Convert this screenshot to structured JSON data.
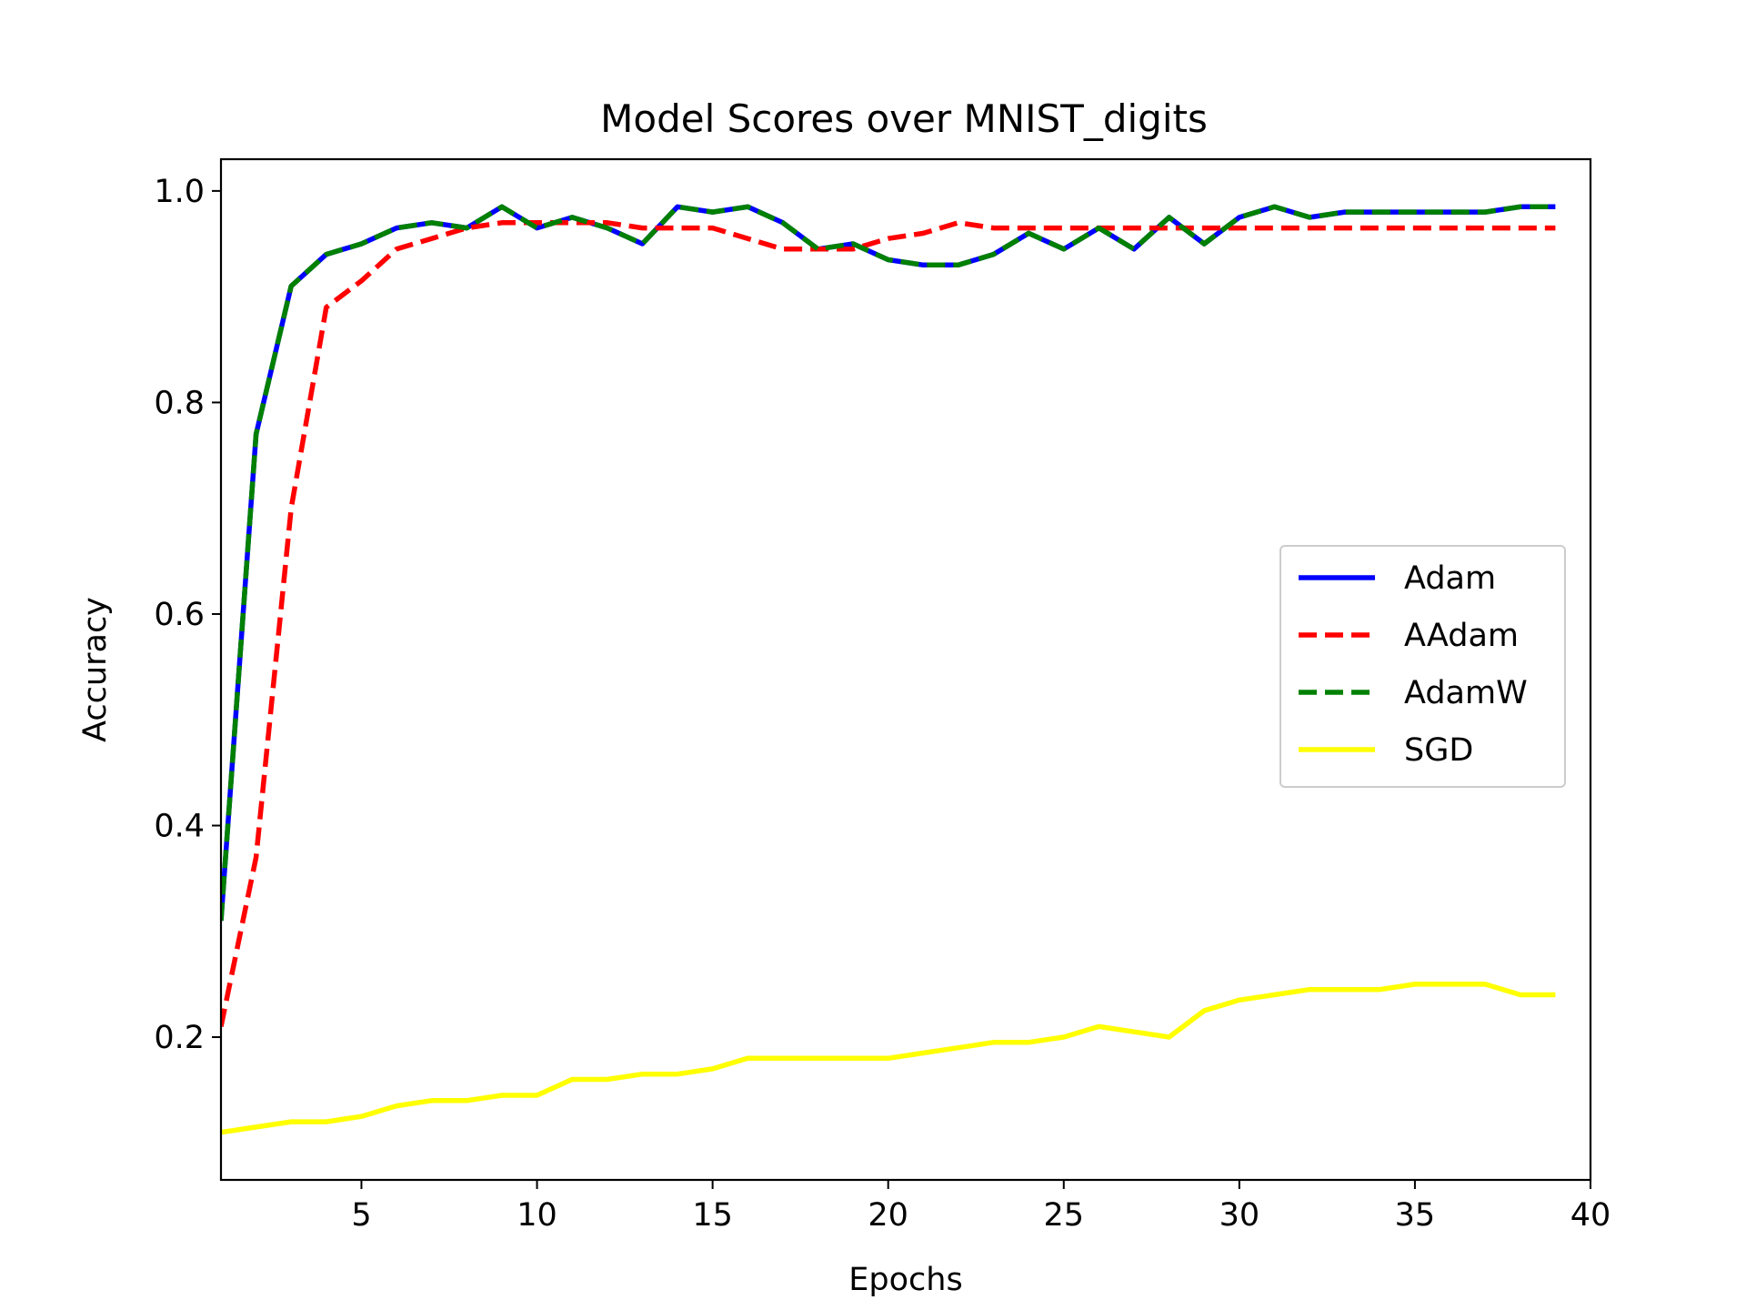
{
  "chart_data": {
    "type": "line",
    "title": "Model Scores over MNIST_digits",
    "xlabel": "Epochs",
    "ylabel": "Accuracy",
    "xlim": [
      1,
      40
    ],
    "ylim": [
      0.065,
      1.03
    ],
    "xticks": [
      5,
      10,
      15,
      20,
      25,
      30,
      35,
      40
    ],
    "xtick_labels": [
      "5",
      "10",
      "15",
      "20",
      "25",
      "30",
      "35",
      "40"
    ],
    "yticks": [
      0.2,
      0.4,
      0.6,
      0.8,
      1.0
    ],
    "ytick_labels": [
      "0.2",
      "0.4",
      "0.6",
      "0.8",
      "1.0"
    ],
    "grid": false,
    "legend_position": "center-right",
    "x": [
      1,
      2,
      3,
      4,
      5,
      6,
      7,
      8,
      9,
      10,
      11,
      12,
      13,
      14,
      15,
      16,
      17,
      18,
      19,
      20,
      21,
      22,
      23,
      24,
      25,
      26,
      27,
      28,
      29,
      30,
      31,
      32,
      33,
      34,
      35,
      36,
      37,
      38,
      39
    ],
    "series": [
      {
        "name": "Adam",
        "color": "#0000ff",
        "style": "solid",
        "values": [
          0.31,
          0.77,
          0.91,
          0.94,
          0.95,
          0.965,
          0.97,
          0.965,
          0.985,
          0.965,
          0.975,
          0.965,
          0.95,
          0.985,
          0.98,
          0.985,
          0.97,
          0.945,
          0.95,
          0.935,
          0.93,
          0.93,
          0.94,
          0.96,
          0.945,
          0.965,
          0.945,
          0.975,
          0.95,
          0.975,
          0.985,
          0.975,
          0.98,
          0.98,
          0.98,
          0.98,
          0.98,
          0.985,
          0.985
        ]
      },
      {
        "name": "AAdam",
        "color": "#ff0000",
        "style": "dashed",
        "values": [
          0.21,
          0.37,
          0.7,
          0.89,
          0.915,
          0.945,
          0.955,
          0.965,
          0.97,
          0.97,
          0.97,
          0.97,
          0.965,
          0.965,
          0.965,
          0.955,
          0.945,
          0.945,
          0.945,
          0.955,
          0.96,
          0.97,
          0.965,
          0.965,
          0.965,
          0.965,
          0.965,
          0.965,
          0.965,
          0.965,
          0.965,
          0.965,
          0.965,
          0.965,
          0.965,
          0.965,
          0.965,
          0.965,
          0.965
        ]
      },
      {
        "name": "AdamW",
        "color": "#008000",
        "style": "dashed",
        "values": [
          0.31,
          0.77,
          0.91,
          0.94,
          0.95,
          0.965,
          0.97,
          0.965,
          0.985,
          0.965,
          0.975,
          0.965,
          0.95,
          0.985,
          0.98,
          0.985,
          0.97,
          0.945,
          0.95,
          0.935,
          0.93,
          0.93,
          0.94,
          0.96,
          0.945,
          0.965,
          0.945,
          0.975,
          0.95,
          0.975,
          0.985,
          0.975,
          0.98,
          0.98,
          0.98,
          0.98,
          0.98,
          0.985,
          0.985
        ]
      },
      {
        "name": "SGD",
        "color": "#ffff00",
        "style": "solid",
        "values": [
          0.11,
          0.115,
          0.12,
          0.12,
          0.125,
          0.135,
          0.14,
          0.14,
          0.145,
          0.145,
          0.16,
          0.16,
          0.165,
          0.165,
          0.17,
          0.18,
          0.18,
          0.18,
          0.18,
          0.18,
          0.185,
          0.19,
          0.195,
          0.195,
          0.2,
          0.21,
          0.205,
          0.2,
          0.225,
          0.235,
          0.24,
          0.245,
          0.245,
          0.245,
          0.25,
          0.25,
          0.25,
          0.24,
          0.24
        ]
      }
    ]
  }
}
